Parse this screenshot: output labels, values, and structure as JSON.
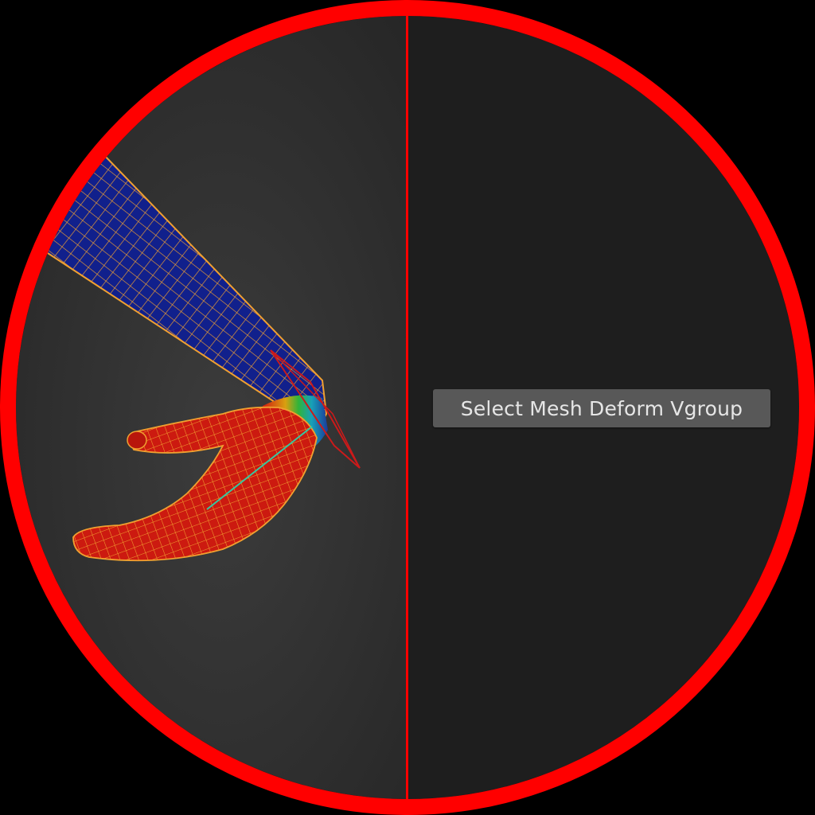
{
  "tooltip": {
    "label": "Select Mesh Deform Vgroup"
  },
  "viewport": {
    "mode": "weight-paint",
    "object": "arm-hand-mesh",
    "accent_color": "#ff0000",
    "wire_color": "#f0a030",
    "bone_color": "#cc1a1a",
    "weight_high_color": "#d11a10",
    "weight_low_color": "#101e8a"
  },
  "icons": [
    "wireframe-mesh",
    "armature-bone"
  ]
}
